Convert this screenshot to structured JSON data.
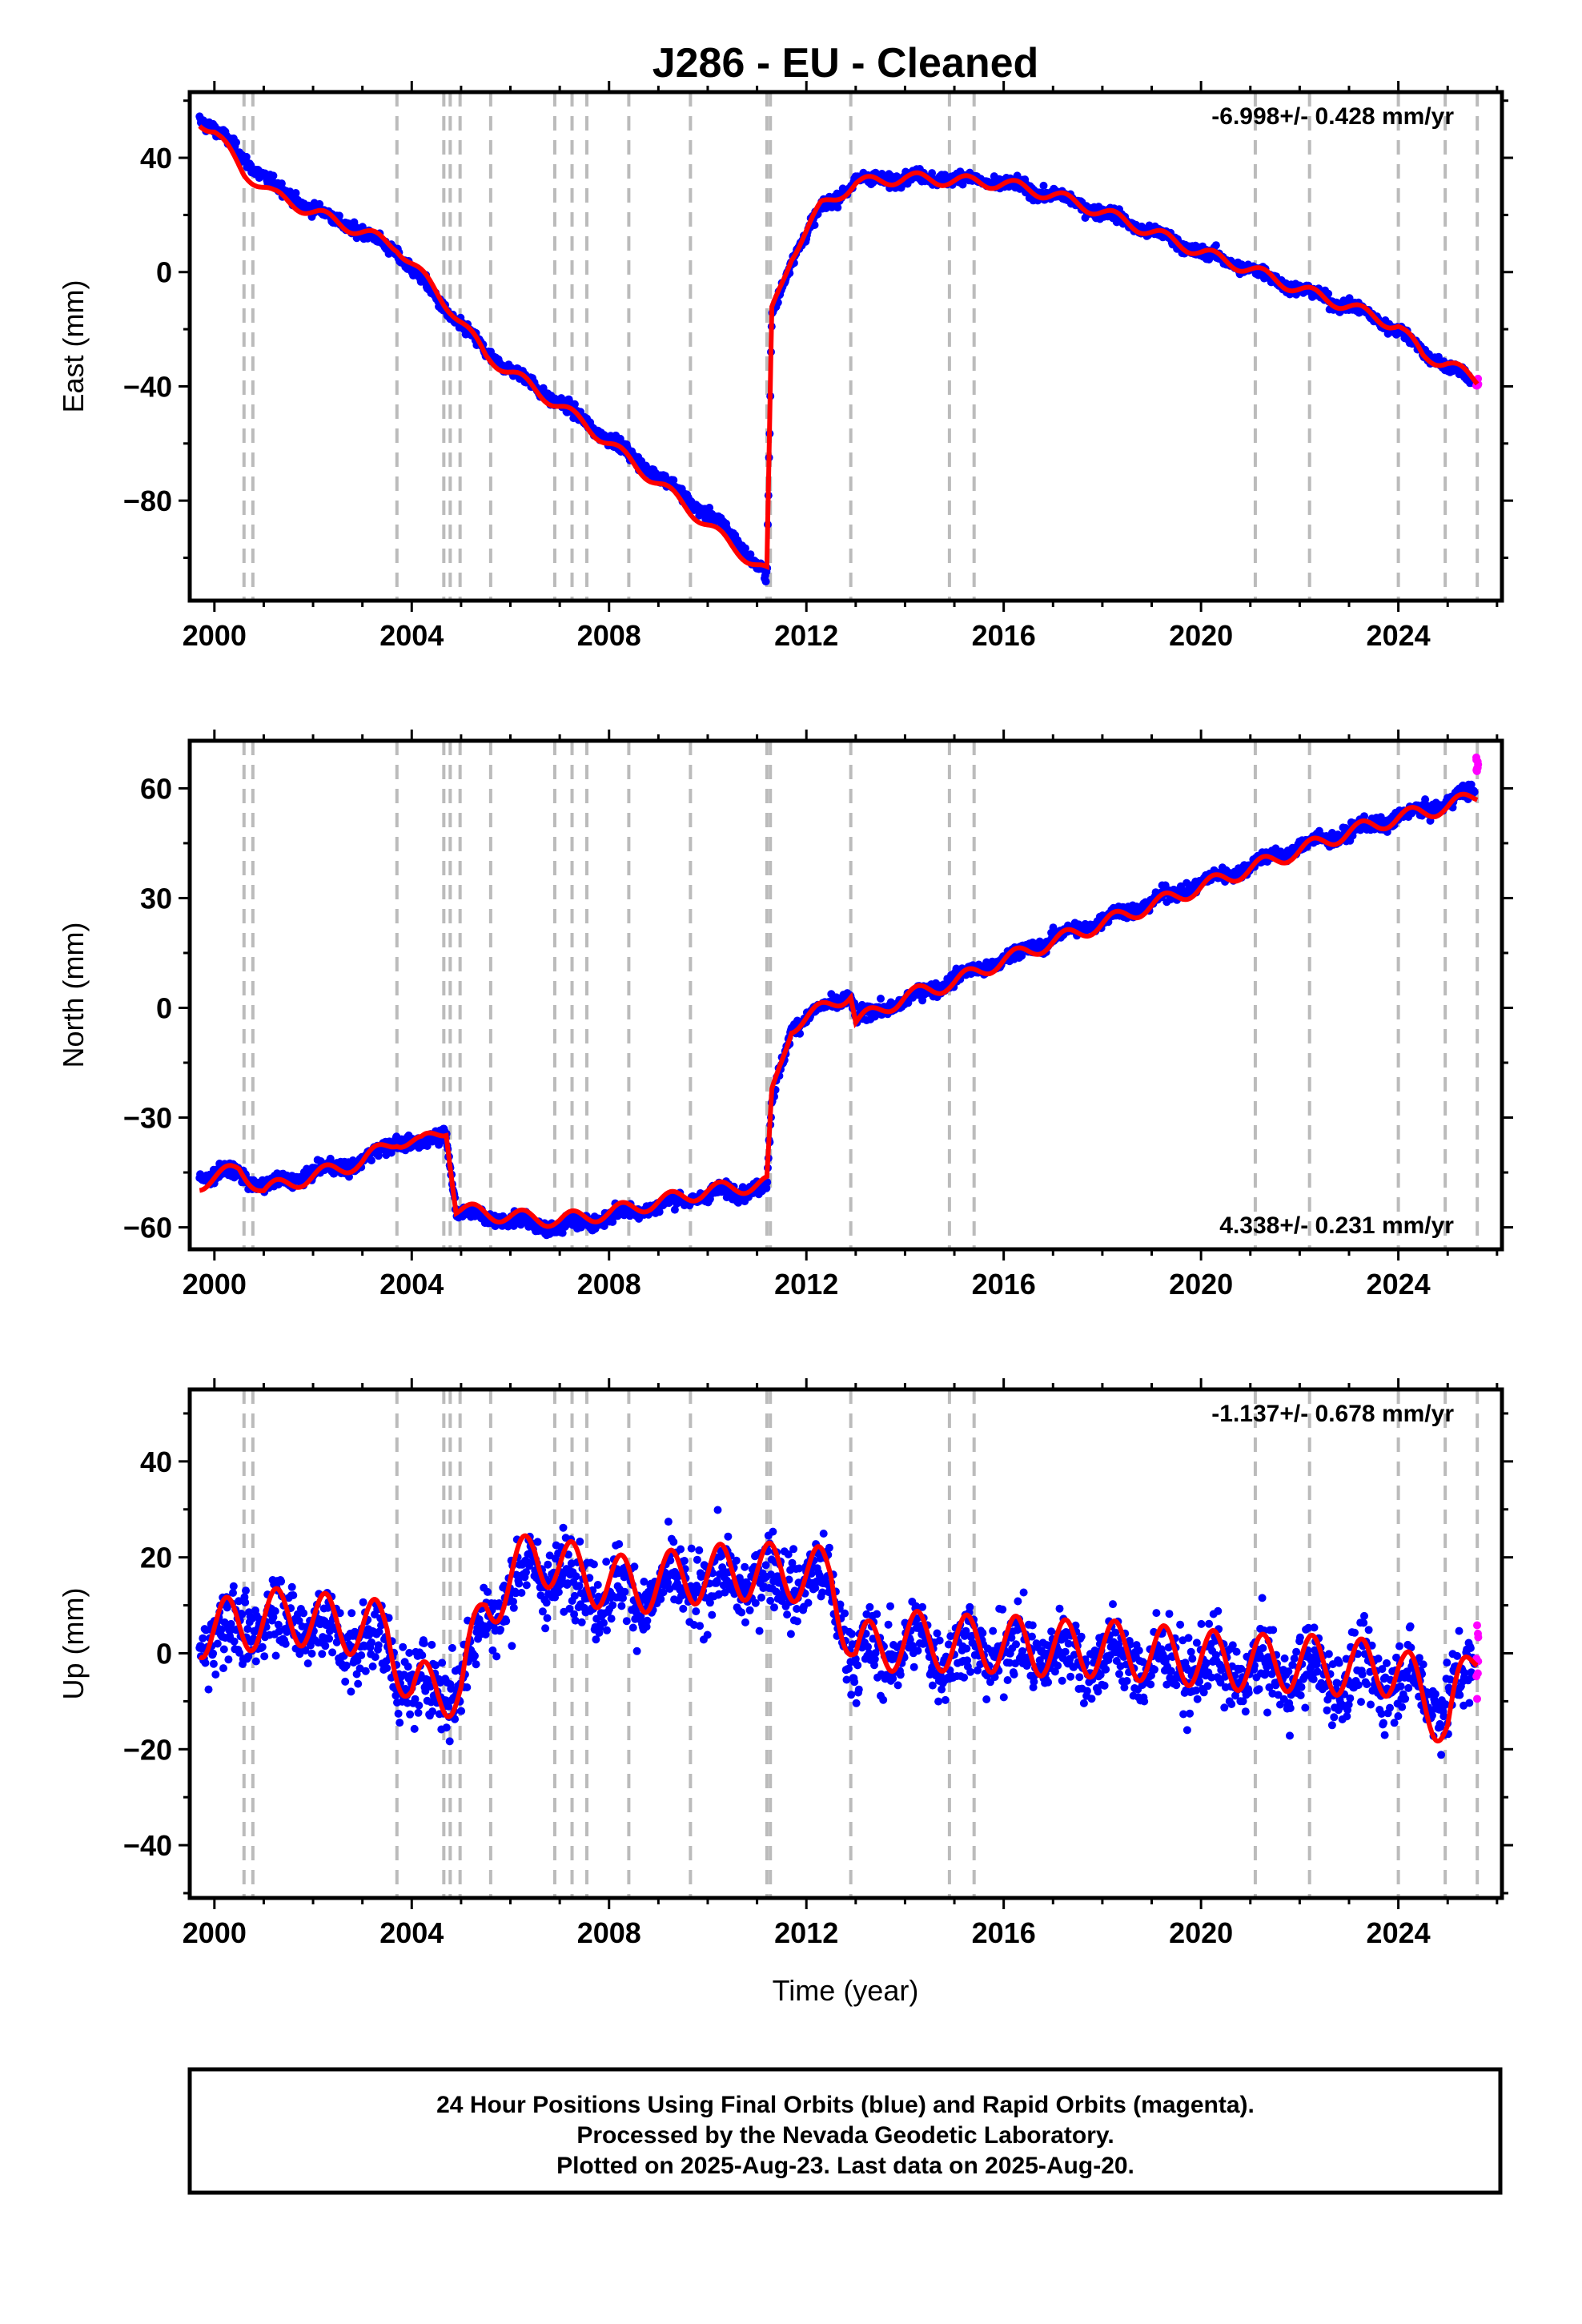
{
  "title": "J286  - EU - Cleaned",
  "x_axis_label": "Time (year)",
  "x_ticks": [
    2000,
    2004,
    2008,
    2012,
    2016,
    2020,
    2024
  ],
  "equipment_change_years": [
    2000.6,
    2000.78,
    2003.7,
    2004.65,
    2004.78,
    2004.98,
    2005.6,
    2006.9,
    2007.25,
    2007.55,
    2008.4,
    2009.65,
    2011.2,
    2011.27,
    2012.9,
    2014.9,
    2015.4,
    2021.1,
    2022.2,
    2024.0,
    2024.95,
    2025.6
  ],
  "colors": {
    "final_orbits": "#0000ff",
    "rapid_orbits": "#ff00ff",
    "model": "#ff0000",
    "equipment_lines": "#bbbbbb"
  },
  "footer": {
    "line1": "24 Hour Positions Using Final Orbits (blue) and Rapid Orbits (magenta).",
    "line2": "Processed by the Nevada Geodetic Laboratory.",
    "line3": "Plotted on 2025-Aug-23. Last data on 2025-Aug-20."
  },
  "chart_data": [
    {
      "type": "scatter",
      "component": "east",
      "ylabel": "East (mm)",
      "rate_text": "-6.998+/- 0.428 mm/yr",
      "rate_position": "top-right",
      "xlim": [
        1999.5,
        2026.1
      ],
      "ylim": [
        -115,
        63
      ],
      "y_ticks": [
        40,
        0,
        -40,
        -80
      ],
      "x": [
        1999.7,
        2000.0,
        2000.6,
        2001.2,
        2002.0,
        2003.0,
        2003.7,
        2004.8,
        2005.5,
        2006.5,
        2007.5,
        2008.5,
        2009.5,
        2010.5,
        2011.2,
        2011.3,
        2011.7,
        2012.3,
        2013.0,
        2014.0,
        2015.0,
        2016.0,
        2017.0,
        2018.0,
        2019.0,
        2020.0,
        2021.0,
        2022.0,
        2023.0,
        2024.0,
        2024.5,
        2025.0,
        2025.6
      ],
      "series": [
        {
          "name": "Final Orbits",
          "values": [
            54,
            50,
            40,
            30,
            22,
            14,
            7,
            -15,
            -28,
            -40,
            -52,
            -65,
            -78,
            -92,
            -107,
            -16,
            5,
            22,
            32,
            33,
            33,
            31,
            27,
            21,
            14,
            7,
            1,
            -6,
            -12,
            -20,
            -28,
            -33,
            -39
          ]
        },
        {
          "name": "Rapid Orbits",
          "values": [
            -39
          ]
        },
        {
          "name": "Model",
          "values": [
            53,
            49,
            35,
            27,
            21,
            14,
            9,
            -13,
            -29,
            -41,
            -53,
            -67,
            -81,
            -96,
            -105,
            -14,
            6,
            23,
            31,
            33,
            32,
            31,
            27,
            21,
            14,
            7,
            1,
            -6,
            -12,
            -19,
            -29,
            -32,
            -38
          ]
        }
      ]
    },
    {
      "type": "scatter",
      "component": "north",
      "ylabel": "North (mm)",
      "rate_text": "4.338+/- 0.231 mm/yr",
      "rate_position": "bottom-right",
      "xlim": [
        1999.5,
        2026.1
      ],
      "ylim": [
        -66,
        73
      ],
      "y_ticks": [
        60,
        30,
        0,
        -30,
        -60
      ],
      "x": [
        1999.7,
        2000.5,
        2001.0,
        2002.0,
        2003.0,
        2003.7,
        2004.2,
        2004.7,
        2004.9,
        2006.0,
        2007.0,
        2008.0,
        2009.0,
        2010.0,
        2011.2,
        2011.3,
        2011.7,
        2012.9,
        2013.0,
        2014.0,
        2015.0,
        2016.0,
        2017.0,
        2018.0,
        2019.0,
        2020.0,
        2021.0,
        2022.0,
        2023.0,
        2024.0,
        2025.0,
        2025.6
      ],
      "series": [
        {
          "name": "Final Orbits",
          "values": [
            -46,
            -45,
            -49,
            -45,
            -42,
            -36,
            -38,
            -33,
            -56,
            -58,
            -60,
            -57,
            -54,
            -51,
            -49,
            -26,
            -5,
            4,
            -3,
            2,
            8,
            13,
            19,
            24,
            29,
            34,
            39,
            44,
            48,
            52,
            56,
            60
          ]
        },
        {
          "name": "Rapid Orbits",
          "values": [
            66
          ]
        },
        {
          "name": "Model",
          "values": [
            -48,
            -44,
            -50,
            -46,
            -42,
            -36,
            -37,
            -33,
            -55,
            -57,
            -58,
            -56,
            -53,
            -50,
            -48,
            -24,
            -5,
            4,
            -4,
            3,
            7,
            13,
            18,
            23,
            28,
            33,
            38,
            43,
            48,
            52,
            55,
            58
          ]
        }
      ]
    },
    {
      "type": "scatter",
      "component": "up",
      "ylabel": "Up (mm)",
      "rate_text": "-1.137+/- 0.678 mm/yr",
      "rate_position": "top-right",
      "xlim": [
        1999.5,
        2026.1
      ],
      "ylim": [
        -51,
        55
      ],
      "y_ticks": [
        40,
        20,
        0,
        -20,
        -40
      ],
      "x": [
        1999.7,
        2000.5,
        2001.5,
        2002.5,
        2003.5,
        2004.0,
        2005.0,
        2005.5,
        2006.5,
        2007.5,
        2008.5,
        2009.5,
        2010.5,
        2011.5,
        2012.5,
        2013.0,
        2014.0,
        2015.0,
        2016.0,
        2017.0,
        2018.0,
        2019.0,
        2020.0,
        2021.0,
        2022.0,
        2023.0,
        2024.0,
        2025.0,
        2025.6
      ],
      "series": [
        {
          "name": "Final Orbits",
          "values": [
            3,
            5,
            8,
            3,
            2,
            -8,
            -6,
            8,
            18,
            14,
            12,
            14,
            15,
            16,
            14,
            -2,
            2,
            0,
            1,
            0,
            -1,
            -2,
            -3,
            -4,
            -4,
            -5,
            -5,
            -10,
            -3
          ]
        },
        {
          "name": "Rapid Orbits",
          "values": [
            2
          ]
        },
        {
          "name": "Model",
          "values": [
            5,
            6,
            8,
            6,
            5,
            -8,
            -7,
            10,
            21,
            16,
            14,
            16,
            17,
            17,
            16,
            0,
            3,
            2,
            2,
            1,
            1,
            0,
            -1,
            -2,
            -2,
            -3,
            -3,
            -15,
            1
          ]
        }
      ]
    }
  ]
}
